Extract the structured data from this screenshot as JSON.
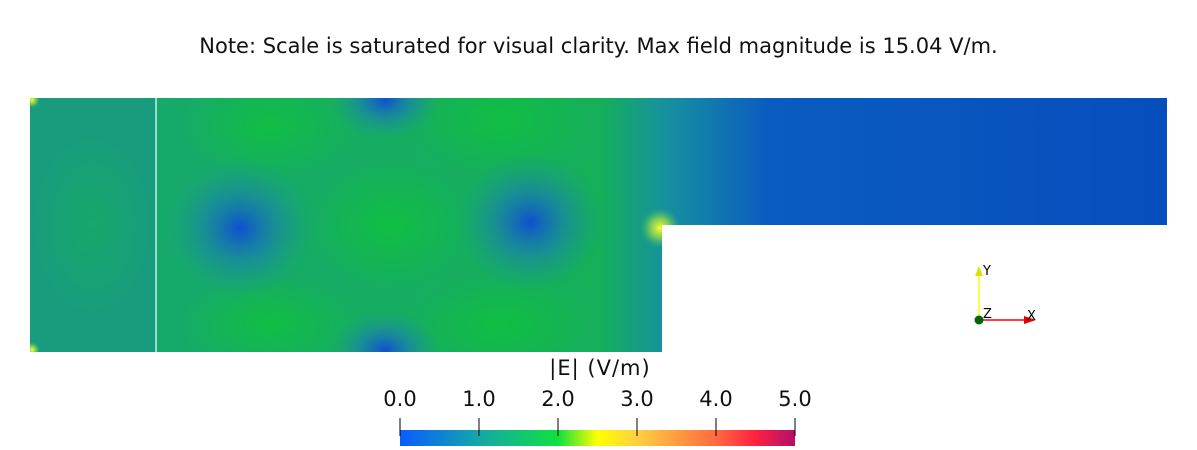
{
  "note": "Note: Scale is saturated for visual clarity. Max field magnitude is 15.04 V/m.",
  "colorbar": {
    "title": "|E| (V/m)",
    "range": [
      0.0,
      5.0
    ],
    "ticks": [
      "0.0",
      "1.0",
      "2.0",
      "3.0",
      "4.0",
      "5.0"
    ],
    "colors": [
      "#0a5cff",
      "#14a7a8",
      "#10e040",
      "#ffff00",
      "#ff9a40",
      "#ff2040",
      "#b0106a"
    ]
  },
  "axes_triad": {
    "x": "X",
    "y": "Y",
    "z": "Z",
    "x_color": "#ff0000",
    "y_color": "#ffff00",
    "z_color": "#006400"
  }
}
